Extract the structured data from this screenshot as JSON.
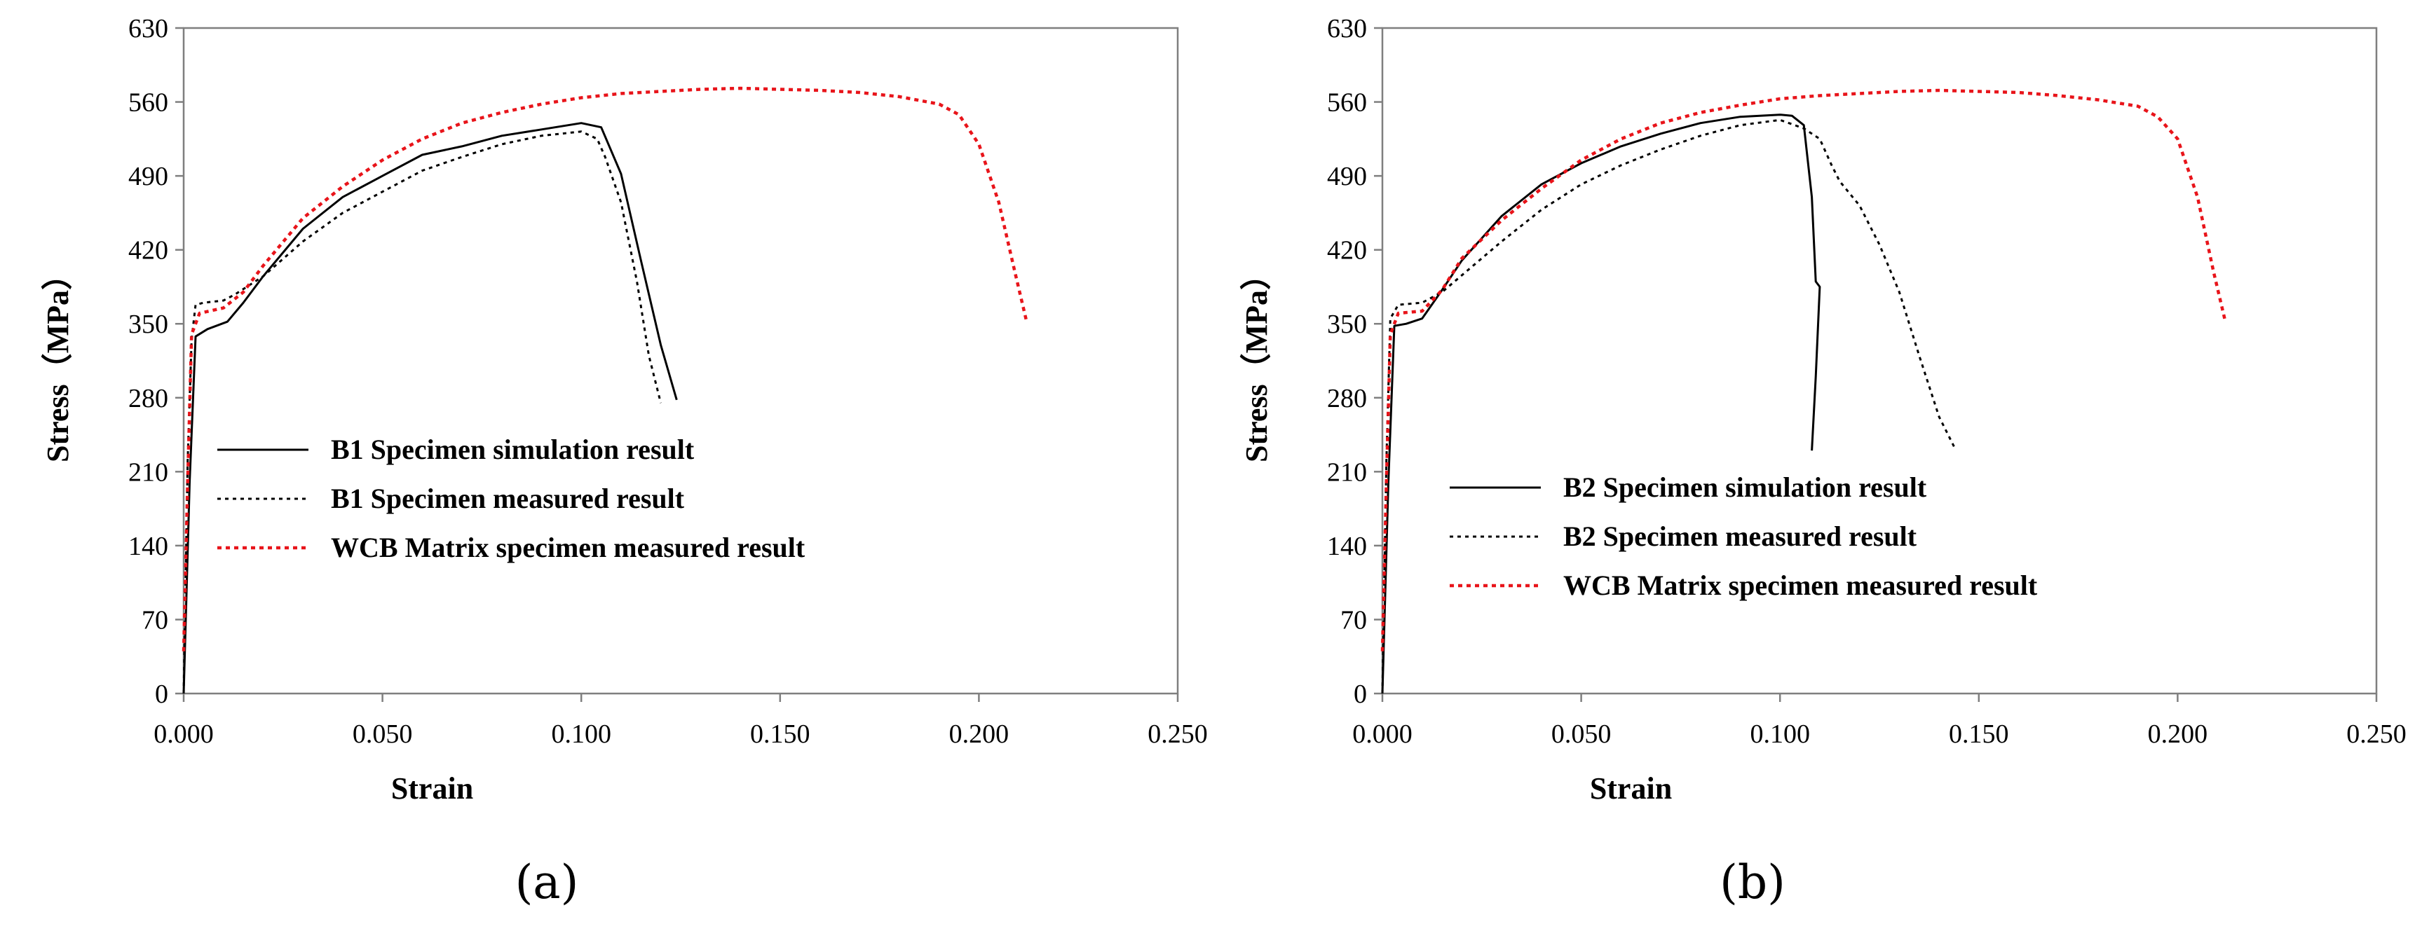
{
  "chart_data": [
    {
      "type": "line",
      "panel_label": "(a)",
      "panel_label_letter": "a",
      "xlabel": "Strain",
      "ylabel": "Stress（MPa）",
      "xlim": [
        0,
        0.25
      ],
      "ylim": [
        0,
        630
      ],
      "xticks": [
        "0.000",
        "0.050",
        "0.100",
        "0.150",
        "0.200",
        "0.250"
      ],
      "yticks": [
        "0",
        "70",
        "140",
        "210",
        "280",
        "350",
        "420",
        "490",
        "560",
        "630"
      ],
      "grid": false,
      "legend_position": "center-left",
      "series": [
        {
          "name": "B1 Specimen simulation result",
          "style": "solid",
          "color": "#000000",
          "points": [
            [
              0,
              0
            ],
            [
              0.0015,
              200
            ],
            [
              0.003,
              338
            ],
            [
              0.006,
              345
            ],
            [
              0.011,
              352
            ],
            [
              0.015,
              370
            ],
            [
              0.02,
              395
            ],
            [
              0.03,
              440
            ],
            [
              0.04,
              470
            ],
            [
              0.05,
              490
            ],
            [
              0.06,
              510
            ],
            [
              0.07,
              518
            ],
            [
              0.08,
              528
            ],
            [
              0.09,
              534
            ],
            [
              0.1,
              540
            ],
            [
              0.105,
              536
            ],
            [
              0.11,
              492
            ],
            [
              0.115,
              410
            ],
            [
              0.12,
              330
            ],
            [
              0.124,
              278
            ]
          ]
        },
        {
          "name": "B1 Specimen measured result",
          "style": "dotted",
          "color": "#000000",
          "points": [
            [
              0,
              0
            ],
            [
              0.001,
              220
            ],
            [
              0.002,
              335
            ],
            [
              0.003,
              368
            ],
            [
              0.005,
              370
            ],
            [
              0.01,
              372
            ],
            [
              0.013,
              378
            ],
            [
              0.02,
              395
            ],
            [
              0.03,
              428
            ],
            [
              0.04,
              455
            ],
            [
              0.05,
              475
            ],
            [
              0.06,
              495
            ],
            [
              0.07,
              508
            ],
            [
              0.08,
              520
            ],
            [
              0.09,
              528
            ],
            [
              0.1,
              532
            ],
            [
              0.104,
              525
            ],
            [
              0.106,
              508
            ],
            [
              0.11,
              465
            ],
            [
              0.114,
              390
            ],
            [
              0.117,
              320
            ],
            [
              0.12,
              275
            ]
          ]
        },
        {
          "name": "WCB Matrix specimen measured result",
          "style": "dotted",
          "color": "#e8141a",
          "points": [
            [
              0,
              40
            ],
            [
              0.001,
              200
            ],
            [
              0.002,
              340
            ],
            [
              0.004,
              360
            ],
            [
              0.01,
              365
            ],
            [
              0.015,
              380
            ],
            [
              0.02,
              405
            ],
            [
              0.03,
              450
            ],
            [
              0.04,
              480
            ],
            [
              0.05,
              505
            ],
            [
              0.06,
              525
            ],
            [
              0.07,
              540
            ],
            [
              0.08,
              550
            ],
            [
              0.09,
              558
            ],
            [
              0.1,
              564
            ],
            [
              0.11,
              568
            ],
            [
              0.12,
              570
            ],
            [
              0.13,
              572
            ],
            [
              0.14,
              573
            ],
            [
              0.15,
              572
            ],
            [
              0.16,
              571
            ],
            [
              0.17,
              569
            ],
            [
              0.18,
              565
            ],
            [
              0.19,
              558
            ],
            [
              0.195,
              548
            ],
            [
              0.2,
              520
            ],
            [
              0.205,
              465
            ],
            [
              0.209,
              400
            ],
            [
              0.212,
              352
            ]
          ]
        }
      ]
    },
    {
      "type": "line",
      "panel_label": "(b)",
      "panel_label_letter": "b",
      "xlabel": "Strain",
      "ylabel": "Stress（MPa）",
      "xlim": [
        0,
        0.25
      ],
      "ylim": [
        0,
        630
      ],
      "xticks": [
        "0.000",
        "0.050",
        "0.100",
        "0.150",
        "0.200",
        "0.250"
      ],
      "yticks": [
        "0",
        "70",
        "140",
        "210",
        "280",
        "350",
        "420",
        "490",
        "560",
        "630"
      ],
      "grid": false,
      "legend_position": "center-left",
      "series": [
        {
          "name": "B2 Specimen simulation result",
          "style": "solid",
          "color": "#000000",
          "points": [
            [
              0,
              0
            ],
            [
              0.0015,
              200
            ],
            [
              0.003,
              348
            ],
            [
              0.006,
              350
            ],
            [
              0.01,
              355
            ],
            [
              0.015,
              382
            ],
            [
              0.02,
              410
            ],
            [
              0.03,
              452
            ],
            [
              0.04,
              482
            ],
            [
              0.05,
              502
            ],
            [
              0.06,
              518
            ],
            [
              0.07,
              530
            ],
            [
              0.08,
              540
            ],
            [
              0.09,
              546
            ],
            [
              0.1,
              548
            ],
            [
              0.103,
              547
            ],
            [
              0.106,
              538
            ],
            [
              0.108,
              470
            ],
            [
              0.109,
              390
            ],
            [
              0.11,
              385
            ],
            [
              0.109,
              300
            ],
            [
              0.108,
              230
            ]
          ]
        },
        {
          "name": "B2 Specimen measured result",
          "style": "dotted",
          "color": "#000000",
          "points": [
            [
              0,
              0
            ],
            [
              0.001,
              220
            ],
            [
              0.002,
              355
            ],
            [
              0.004,
              368
            ],
            [
              0.01,
              370
            ],
            [
              0.015,
              380
            ],
            [
              0.02,
              396
            ],
            [
              0.03,
              428
            ],
            [
              0.04,
              458
            ],
            [
              0.05,
              482
            ],
            [
              0.06,
              500
            ],
            [
              0.07,
              515
            ],
            [
              0.08,
              528
            ],
            [
              0.09,
              538
            ],
            [
              0.1,
              543
            ],
            [
              0.106,
              535
            ],
            [
              0.11,
              525
            ],
            [
              0.113,
              500
            ],
            [
              0.115,
              485
            ],
            [
              0.12,
              462
            ],
            [
              0.125,
              425
            ],
            [
              0.13,
              380
            ],
            [
              0.135,
              320
            ],
            [
              0.14,
              262
            ],
            [
              0.144,
              232
            ]
          ]
        },
        {
          "name": "WCB Matrix specimen measured result",
          "style": "dotted",
          "color": "#e8141a",
          "points": [
            [
              0,
              40
            ],
            [
              0.001,
              200
            ],
            [
              0.002,
              340
            ],
            [
              0.004,
              360
            ],
            [
              0.01,
              362
            ],
            [
              0.015,
              382
            ],
            [
              0.02,
              412
            ],
            [
              0.03,
              448
            ],
            [
              0.04,
              478
            ],
            [
              0.05,
              505
            ],
            [
              0.06,
              525
            ],
            [
              0.07,
              540
            ],
            [
              0.08,
              550
            ],
            [
              0.09,
              557
            ],
            [
              0.1,
              563
            ],
            [
              0.11,
              566
            ],
            [
              0.12,
              568
            ],
            [
              0.13,
              570
            ],
            [
              0.14,
              571
            ],
            [
              0.15,
              570
            ],
            [
              0.16,
              569
            ],
            [
              0.17,
              566
            ],
            [
              0.18,
              562
            ],
            [
              0.19,
              556
            ],
            [
              0.195,
              546
            ],
            [
              0.2,
              525
            ],
            [
              0.205,
              470
            ],
            [
              0.209,
              400
            ],
            [
              0.212,
              352
            ]
          ]
        }
      ]
    }
  ]
}
